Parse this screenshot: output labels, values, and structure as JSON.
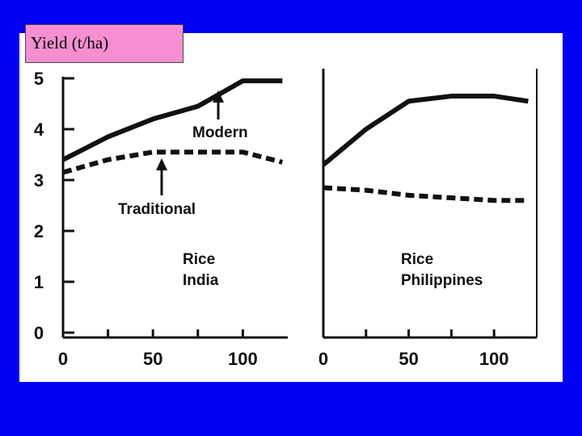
{
  "ylabel": "Yield (t/ha)",
  "chart_data": [
    {
      "type": "line",
      "title": "",
      "xlabel": "",
      "ylabel": "Yield (t/ha)",
      "xlim": [
        0,
        125
      ],
      "ylim": [
        0,
        5
      ],
      "xticks": [
        0,
        50,
        100
      ],
      "yticks": [
        0,
        1,
        2,
        3,
        4,
        5
      ],
      "annotation": [
        "Rice",
        "India"
      ],
      "series": [
        {
          "name": "Modern",
          "style": "solid",
          "x": [
            0,
            25,
            50,
            75,
            100,
            122
          ],
          "y": [
            3.4,
            3.85,
            4.2,
            4.45,
            4.95,
            4.95
          ]
        },
        {
          "name": "Traditional",
          "style": "dashed",
          "x": [
            0,
            25,
            50,
            75,
            100,
            122
          ],
          "y": [
            3.15,
            3.4,
            3.55,
            3.55,
            3.55,
            3.35
          ]
        }
      ]
    },
    {
      "type": "line",
      "title": "",
      "xlabel": "",
      "ylabel": "",
      "xlim": [
        0,
        125
      ],
      "ylim": [
        0,
        5
      ],
      "xticks": [
        0,
        50,
        100
      ],
      "annotation": [
        "Rice",
        "Philippines"
      ],
      "series": [
        {
          "name": "Modern",
          "style": "solid",
          "x": [
            0,
            25,
            50,
            75,
            100,
            120
          ],
          "y": [
            3.3,
            4.0,
            4.55,
            4.65,
            4.65,
            4.55
          ]
        },
        {
          "name": "Traditional",
          "style": "dashed",
          "x": [
            0,
            25,
            50,
            75,
            100,
            120
          ],
          "y": [
            2.85,
            2.8,
            2.7,
            2.65,
            2.6,
            2.6
          ]
        }
      ]
    }
  ],
  "colors": {
    "background": "#0000f5",
    "panel": "#ffffff",
    "label_box": "#f58fd2",
    "ink": "#111111"
  }
}
